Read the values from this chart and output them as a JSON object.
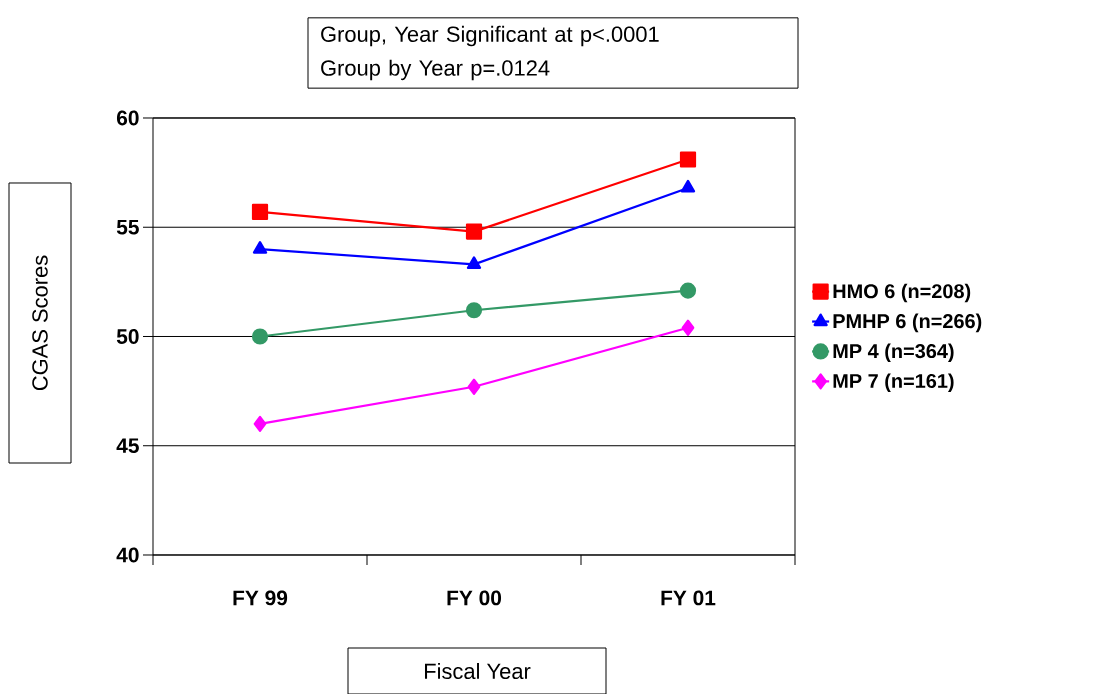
{
  "chart_data": {
    "type": "line",
    "xlabel": "Fiscal Year",
    "ylabel": "CGAS Scores",
    "annotations": [
      "Group, Year Significant at p<.0001",
      "Group by Year p=.0124"
    ],
    "categories": [
      "FY 99",
      "FY 00",
      "FY 01"
    ],
    "series": [
      {
        "name": "HMO 6 (n=208)",
        "color": "#ff0000",
        "marker": "square",
        "values": [
          55.7,
          54.8,
          58.1
        ]
      },
      {
        "name": "PMHP 6 (n=266)",
        "color": "#0000ff",
        "marker": "triangle",
        "values": [
          54.0,
          53.3,
          56.8
        ]
      },
      {
        "name": "MP 4 (n=364)",
        "color": "#339966",
        "marker": "circle",
        "values": [
          50.0,
          51.2,
          52.1
        ]
      },
      {
        "name": "MP 7 (n=161)",
        "color": "#ff00ff",
        "marker": "diamond",
        "values": [
          46.0,
          47.7,
          50.4
        ]
      }
    ],
    "ylim": [
      40,
      60
    ],
    "yticks": [
      40,
      45,
      50,
      55,
      60
    ],
    "grid": "y",
    "legend": "right",
    "line_style": "solid"
  }
}
